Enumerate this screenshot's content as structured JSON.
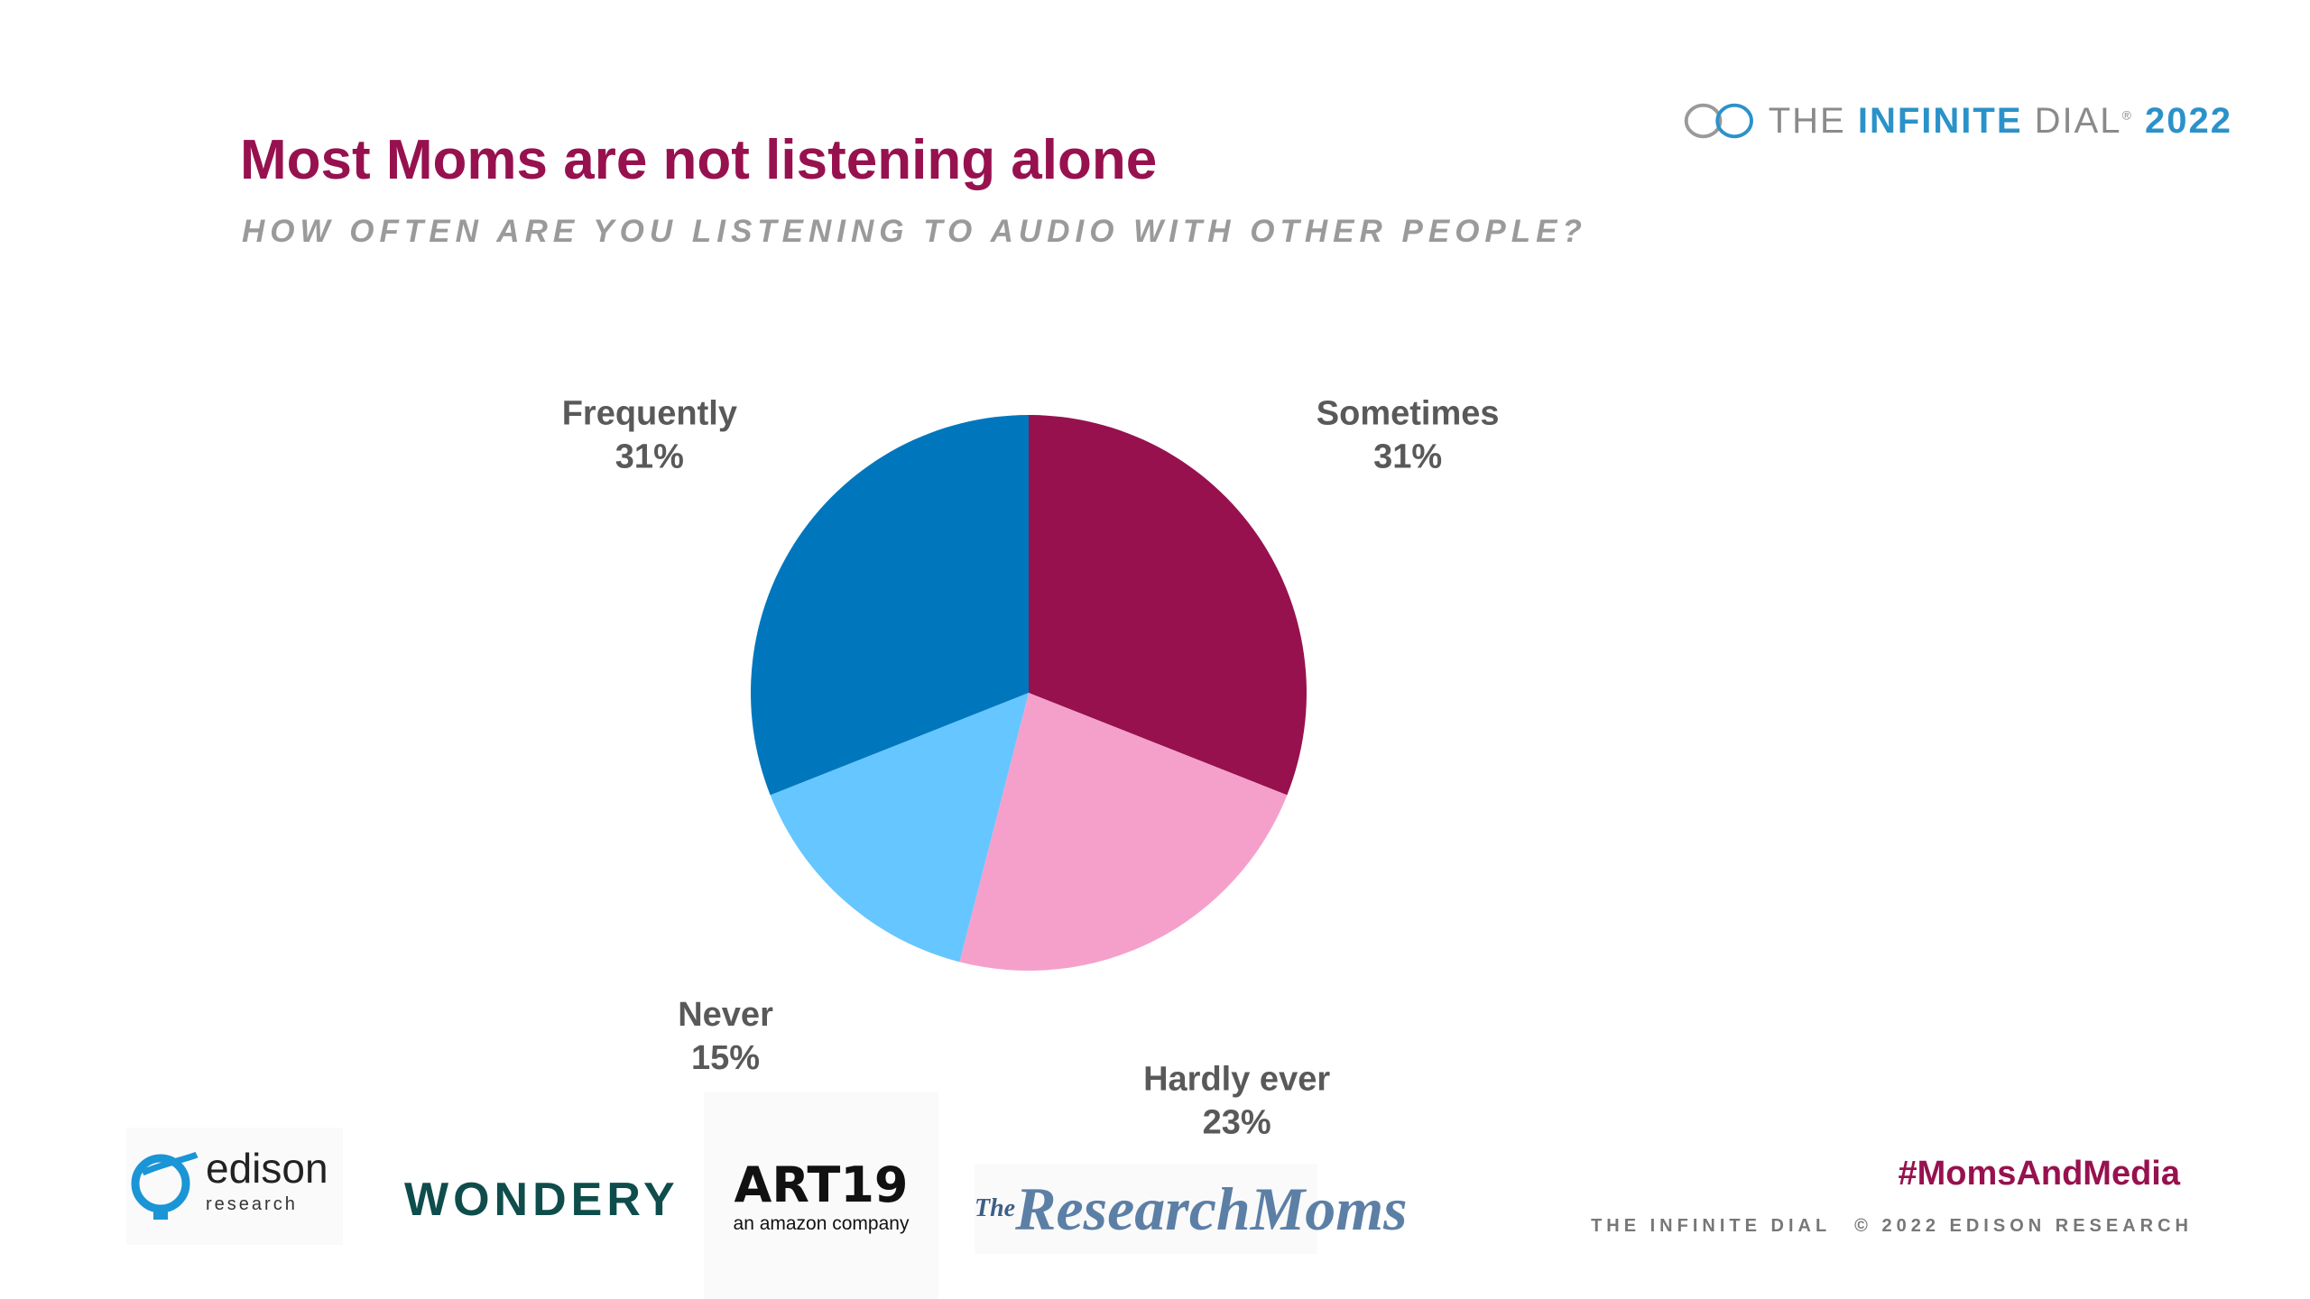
{
  "title": "Most Moms are not listening alone",
  "subtitle": "HOW OFTEN ARE YOU LISTENING TO AUDIO WITH OTHER PEOPLE?",
  "brand": {
    "prefix": "THE ",
    "bold": "INFINITE",
    "suffix": " DIAL",
    "reg": "®",
    "year": "2022"
  },
  "chart_data": {
    "type": "pie",
    "slices": [
      {
        "label": "Sometimes",
        "value": 31,
        "value_label": "31%",
        "color": "#97114f"
      },
      {
        "label": "Hardly ever",
        "value": 23,
        "value_label": "23%",
        "color": "#f5a0cb"
      },
      {
        "label": "Never",
        "value": 15,
        "value_label": "15%",
        "color": "#66c6ff"
      },
      {
        "label": "Frequently",
        "value": 31,
        "value_label": "31%",
        "color": "#0077bd"
      }
    ]
  },
  "footer": {
    "hashtag": "#MomsAndMedia",
    "left": "THE INFINITE DIAL",
    "right": "© 2022 EDISON RESEARCH"
  },
  "logos": {
    "edison": "edison",
    "edison_sub": "research",
    "wondery": "WONDERY",
    "art19": "ART19",
    "art19_sub": "an amazon company",
    "research_moms_small": "The",
    "research_moms": "ResearchMoms"
  }
}
